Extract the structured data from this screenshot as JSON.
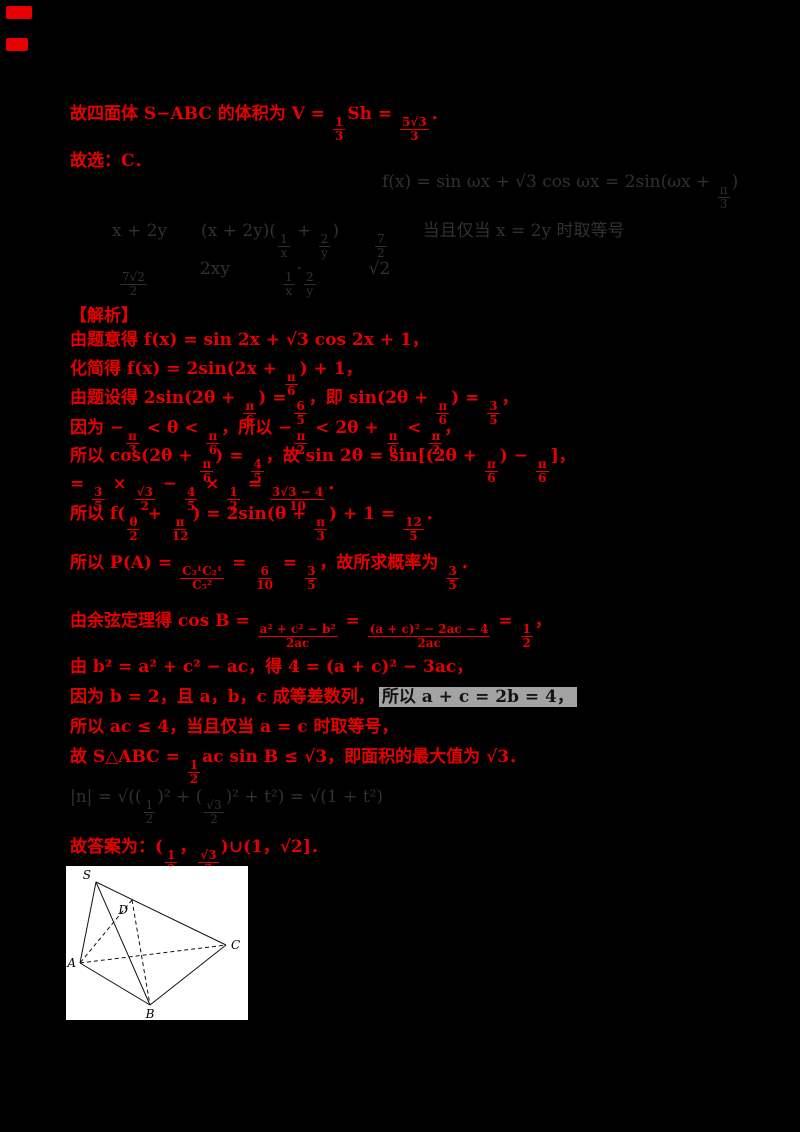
{
  "page": {
    "background": "#000000",
    "accent_red": "#e60000"
  },
  "lines": [
    {
      "text": "故四面体 S−ABC 的体积为 V = {{1|3}}Sh = {{5√3|3}}．"
    },
    {
      "text": "故选：C．"
    },
    {
      "text": "f(x) = sin ωx + √3 cos ωx = 2sin(ωx + {{π|3}})"
    },
    {
      "text": "x + 2y　　(x + 2y)({{1|x}} + {{2|y}})　　{{7|2}}　　当且仅当 x = 2y 时取等号"
    },
    {
      "text": "{{7√2|2}}　　　2xy　　　{{1|x}}·{{2|y}}　　　√2"
    },
    {
      "text": "【解析】"
    },
    {
      "text": "由题意得 f(x) = sin 2x + √3 cos 2x + 1，"
    },
    {
      "text": "化简得 f(x) = 2sin(2x + {{π|6}}) + 1，"
    },
    {
      "text": "由题设得 2sin(2θ + {{π|6}}) = {{6|5}}，即 sin(2θ + {{π|6}}) = {{3|5}}，"
    },
    {
      "text": "因为 −{{π|3}} < θ < {{π|6}}，所以 −{{π|2}} < 2θ + {{π|6}} < {{π|2}}，"
    },
    {
      "text": "所以 cos(2θ + {{π|6}}) = {{4|5}}，故 sin 2θ = sin[(2θ + {{π|6}}) − {{π|6}}]，"
    },
    {
      "text": "= {{3|5}} × {{√3|2}} − {{4|5}} × {{1|2}} = {{3√3 − 4|10}}．"
    },
    {
      "text": "所以 f({{θ|2}} + {{π|12}}) = 2sin(θ + {{π|3}}) + 1 = {{12|5}}．"
    },
    {
      "text": "所以 P(A) = {{C₃¹C₂¹|C₅²}} = {{6|10}} = {{3|5}}，故所求概率为 {{3|5}}．"
    },
    {
      "text": "由余弦定理得 cos B = {{a² + c² − b²|2ac}} = {{(a + c)² − 2ac − 4|2ac}} = {{1|2}}，"
    },
    {
      "text": "由 b² = a² + c² − ac，得 4 = (a + c)² − 3ac，"
    },
    {
      "text": "因为 b = 2，且 a，b，c 成等差数列，",
      "highlight": "所以 a + c = 2b = 4，"
    },
    {
      "text": "所以 ac ≤ 4，当且仅当 a = c 时取等号，"
    },
    {
      "text": "故 S△ABC = {{1|2}}ac sin B ≤ √3，即面积的最大值为 √3．"
    },
    {
      "text": "|n| = √(({{1|2}})² + ({{√3|2}})² + t²) = √(1 + t²)"
    },
    {
      "text": "故答案为：({{1|2}}，{{√3|2}})∪(1，√2]．"
    }
  ],
  "figure": {
    "labels": {
      "S": "S",
      "D": "D",
      "C": "C",
      "A": "A",
      "B": "B"
    }
  }
}
